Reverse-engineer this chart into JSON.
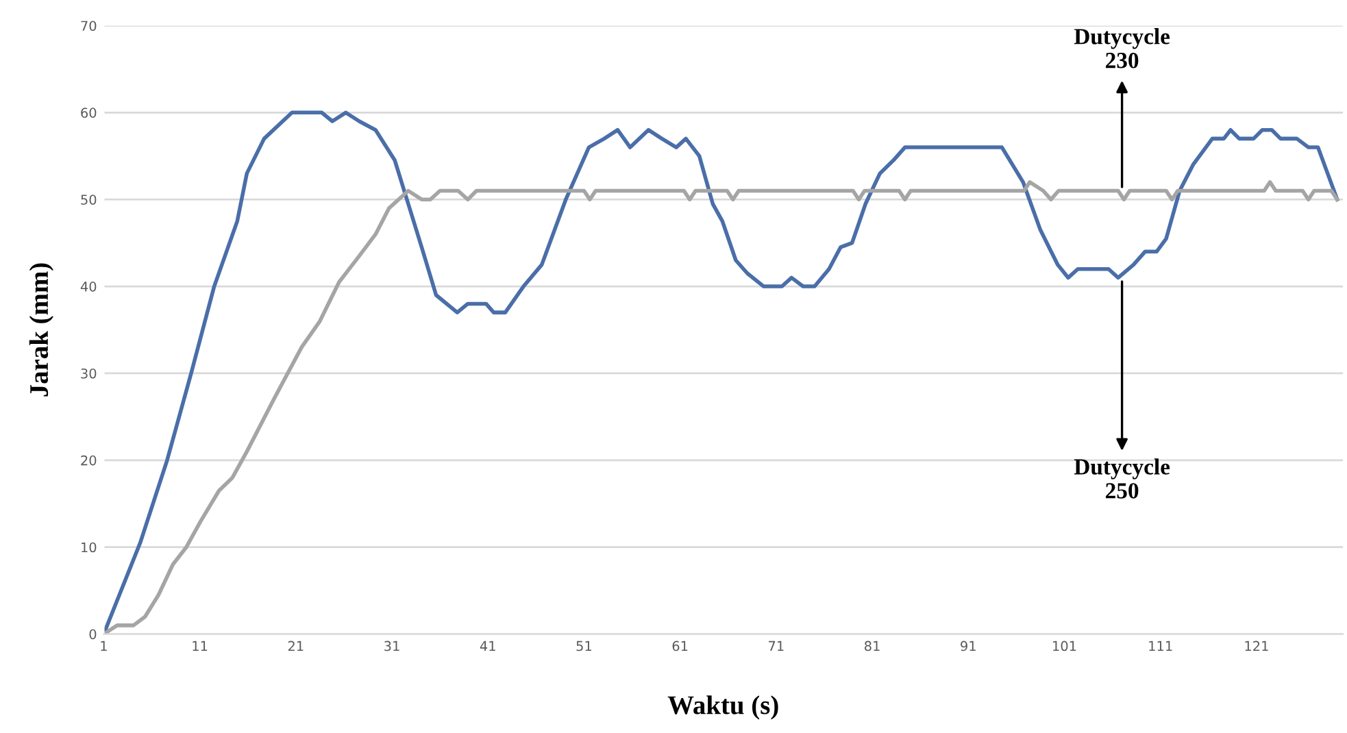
{
  "chart_data": {
    "type": "line",
    "xlabel": "Waktu (s)",
    "ylabel": "Jarak (mm)",
    "xlim": [
      1,
      130
    ],
    "xticks": [
      1,
      11,
      21,
      31,
      41,
      51,
      61,
      71,
      81,
      91,
      101,
      111,
      121
    ],
    "ylim": [
      0,
      70
    ],
    "yticks": [
      0,
      10,
      20,
      30,
      40,
      50,
      60,
      70
    ],
    "grid": "y",
    "legend": false,
    "marker": "none",
    "line_style": "solid",
    "series": [
      {
        "color": "#4a6ea8",
        "x": [
          1,
          4.8,
          7.6,
          10.1,
          12.5,
          14.9,
          15.9,
          17.7,
          20.6,
          23.7,
          24.8,
          26.2,
          27.6,
          29.3,
          31.3,
          32.7,
          34.1,
          35.6,
          37.8,
          38.9,
          40.8,
          41.6,
          42.8,
          44.7,
          46.6,
          49.1,
          51.5,
          53.1,
          54.5,
          55.8,
          57.7,
          59.1,
          60.6,
          61.6,
          63,
          64.4,
          65.4,
          66.8,
          68,
          69.7,
          71.6,
          72.6,
          73.8,
          75,
          76.5,
          77.7,
          78.9,
          80.3,
          81.8,
          83.2,
          84.4,
          94.5,
          96.7,
          98.5,
          100.3,
          101.4,
          102.4,
          105.6,
          106.6,
          108.2,
          109.4,
          110.6,
          111.6,
          113,
          114.4,
          116.4,
          117.6,
          118.3,
          119.2,
          120.7,
          121.6,
          122.6,
          123.5,
          125.2,
          126.4,
          127.4,
          128.4,
          129.4
        ],
        "values": [
          0,
          10.5,
          20,
          30,
          40,
          47.5,
          53,
          57,
          60,
          60,
          59,
          60,
          59,
          58,
          54.5,
          49.5,
          44.5,
          39,
          37,
          38,
          38,
          37,
          37,
          40,
          42.5,
          50,
          56,
          57,
          58,
          56,
          58,
          57,
          56,
          57,
          55,
          49.5,
          47.5,
          43,
          41.5,
          40,
          40,
          41,
          40,
          40,
          42,
          44.5,
          45,
          49.5,
          53,
          54.5,
          56,
          56,
          52,
          46.5,
          42.5,
          41,
          42,
          42,
          41,
          42.5,
          44,
          44,
          45.5,
          51,
          54,
          57,
          57,
          58,
          57,
          57,
          58,
          58,
          57,
          57,
          56,
          56,
          53,
          50
        ]
      },
      {
        "color": "#a5a5a5",
        "x": [
          1,
          2.4,
          4.1,
          5.3,
          6.7,
          8.2,
          9.6,
          11.1,
          13,
          14.4,
          15.9,
          18.7,
          21.6,
          23.5,
          25.5,
          27.6,
          29.3,
          30.7,
          32.7,
          34.1,
          35,
          36,
          37.9,
          38.9,
          39.8,
          51,
          51.6,
          52.2,
          61.4,
          62,
          62.6,
          65.9,
          66.5,
          67.1,
          79,
          79.6,
          80.2,
          83.8,
          84.4,
          85,
          96.8,
          97.4,
          98.8,
          99.6,
          100.4,
          106.6,
          107.2,
          107.8,
          111.6,
          112.2,
          112.8,
          121.8,
          122.4,
          123,
          125.8,
          126.4,
          127,
          128.8,
          129.4
        ],
        "values": [
          0,
          1,
          1,
          2,
          4.5,
          8,
          10,
          13,
          16.5,
          18,
          21,
          27,
          33,
          36,
          40.5,
          43.5,
          46,
          49,
          51,
          50,
          50,
          51,
          51,
          50,
          51,
          51,
          50,
          51,
          51,
          50,
          51,
          51,
          50,
          51,
          51,
          50,
          51,
          51,
          50,
          51,
          51,
          52,
          51,
          50,
          51,
          51,
          50,
          51,
          51,
          50,
          51,
          51,
          52,
          51,
          51,
          50,
          51,
          51,
          50
        ]
      }
    ],
    "annotations": [
      {
        "text": "Dutycycle\n230",
        "x": 107,
        "y": 51
      },
      {
        "text": "Dutycycle\n250",
        "x": 107,
        "y": 41
      }
    ]
  }
}
